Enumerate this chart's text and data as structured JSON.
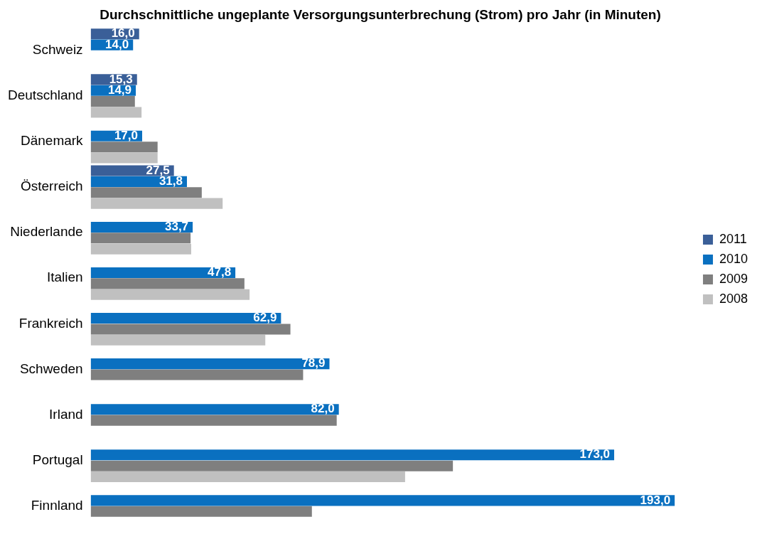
{
  "chart_data": {
    "type": "bar",
    "orientation": "horizontal",
    "title": "Durchschnittliche ungeplante Versorgungsunterbrechung (Strom) pro Jahr (in Minuten)",
    "categories": [
      "Schweiz",
      "Deutschland",
      "Dänemark",
      "Österreich",
      "Niederlande",
      "Italien",
      "Frankreich",
      "Schweden",
      "Irland",
      "Portugal",
      "Finnland"
    ],
    "series": [
      {
        "name": "2011",
        "color": "#3a5f98",
        "values": [
          16.0,
          15.3,
          null,
          27.5,
          null,
          null,
          null,
          null,
          null,
          null,
          null
        ],
        "value_labels": [
          "16,0",
          "15,3",
          null,
          "27,5",
          null,
          null,
          null,
          null,
          null,
          null,
          null
        ]
      },
      {
        "name": "2010",
        "color": "#0a70c0",
        "values": [
          14.0,
          14.9,
          17.0,
          31.8,
          33.7,
          47.8,
          62.9,
          78.9,
          82.0,
          173.0,
          193.0
        ],
        "value_labels": [
          "14,0",
          "14,9",
          "17,0",
          "31,8",
          "33,7",
          "47,8",
          "62,9",
          "78,9",
          "82,0",
          "173,0",
          "193,0"
        ]
      },
      {
        "name": "2009",
        "color": "#7f7f7f",
        "values": [
          null,
          14.6,
          22.1,
          36.7,
          33.0,
          50.8,
          66.0,
          70.2,
          81.3,
          119.7,
          73.1
        ]
      },
      {
        "name": "2008",
        "color": "#c0c0c0",
        "values": [
          null,
          16.8,
          22.1,
          43.6,
          33.2,
          52.5,
          57.7,
          null,
          null,
          103.9,
          null
        ]
      }
    ],
    "legend": "right",
    "grid": false,
    "tick_labels": "y"
  }
}
